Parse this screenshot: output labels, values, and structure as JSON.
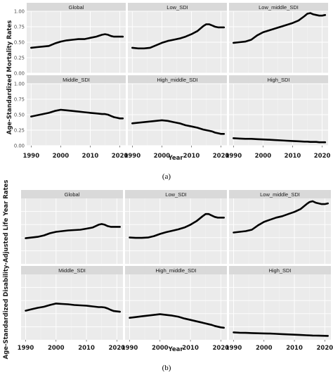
{
  "chart_data": [
    {
      "type": "line",
      "caption": "(a)",
      "xlabel": "Year",
      "ylabel": "Age-Standardized Mortality Rates",
      "xlim": [
        1988.5,
        2022
      ],
      "ylim": [
        0,
        1.0
      ],
      "xticks": [
        1990,
        2000,
        2010,
        2020
      ],
      "yticks": [
        0.0,
        0.25,
        0.5,
        0.75,
        1.0
      ],
      "ytick_labels": [
        "0.00",
        "0.25",
        "0.50",
        "0.75",
        "1.00"
      ],
      "xtick_labels": [
        "1990",
        "2000",
        "2010",
        "2020"
      ],
      "panels": [
        {
          "name": "Global",
          "x": [
            1990,
            1992,
            1994,
            1996,
            1998,
            2000,
            2002,
            2004,
            2006,
            2008,
            2010,
            2012,
            2014,
            2015,
            2016,
            2017,
            2018,
            2019,
            2020,
            2021
          ],
          "values": [
            0.41,
            0.42,
            0.43,
            0.44,
            0.48,
            0.51,
            0.53,
            0.54,
            0.55,
            0.55,
            0.57,
            0.59,
            0.62,
            0.63,
            0.62,
            0.6,
            0.59,
            0.59,
            0.59,
            0.59
          ]
        },
        {
          "name": "Low_SDI",
          "x": [
            1990,
            1992,
            1994,
            1996,
            1998,
            2000,
            2002,
            2004,
            2006,
            2008,
            2010,
            2012,
            2014,
            2015,
            2016,
            2017,
            2018,
            2019,
            2020,
            2021
          ],
          "values": [
            0.41,
            0.4,
            0.4,
            0.41,
            0.45,
            0.49,
            0.52,
            0.54,
            0.56,
            0.59,
            0.63,
            0.68,
            0.76,
            0.79,
            0.79,
            0.77,
            0.75,
            0.74,
            0.74,
            0.74
          ]
        },
        {
          "name": "Low_middle_SDI",
          "x": [
            1990,
            1992,
            1994,
            1996,
            1998,
            2000,
            2002,
            2004,
            2006,
            2008,
            2010,
            2012,
            2014,
            2015,
            2016,
            2017,
            2018,
            2019,
            2020,
            2021
          ],
          "values": [
            0.49,
            0.5,
            0.51,
            0.54,
            0.61,
            0.66,
            0.69,
            0.72,
            0.75,
            0.78,
            0.81,
            0.85,
            0.92,
            0.96,
            0.97,
            0.95,
            0.94,
            0.93,
            0.93,
            0.94
          ]
        },
        {
          "name": "Middle_SDI",
          "x": [
            1990,
            1992,
            1994,
            1996,
            1998,
            2000,
            2002,
            2004,
            2006,
            2008,
            2010,
            2012,
            2014,
            2015,
            2016,
            2017,
            2018,
            2019,
            2020,
            2021
          ],
          "values": [
            0.47,
            0.49,
            0.51,
            0.53,
            0.56,
            0.58,
            0.57,
            0.56,
            0.55,
            0.54,
            0.53,
            0.52,
            0.51,
            0.51,
            0.5,
            0.48,
            0.46,
            0.45,
            0.44,
            0.44
          ]
        },
        {
          "name": "High_middle_SDI",
          "x": [
            1990,
            1992,
            1994,
            1996,
            1998,
            2000,
            2002,
            2004,
            2006,
            2008,
            2010,
            2012,
            2014,
            2015,
            2016,
            2017,
            2018,
            2019,
            2020,
            2021
          ],
          "values": [
            0.36,
            0.37,
            0.38,
            0.39,
            0.4,
            0.41,
            0.4,
            0.38,
            0.36,
            0.33,
            0.31,
            0.29,
            0.26,
            0.25,
            0.24,
            0.23,
            0.21,
            0.2,
            0.19,
            0.19
          ]
        },
        {
          "name": "High_SDI",
          "x": [
            1990,
            1992,
            1994,
            1996,
            1998,
            2000,
            2002,
            2004,
            2006,
            2008,
            2010,
            2012,
            2014,
            2015,
            2016,
            2017,
            2018,
            2019,
            2020,
            2021
          ],
          "values": [
            0.12,
            0.115,
            0.11,
            0.11,
            0.105,
            0.1,
            0.095,
            0.09,
            0.085,
            0.08,
            0.075,
            0.07,
            0.065,
            0.065,
            0.06,
            0.06,
            0.06,
            0.055,
            0.055,
            0.055
          ]
        }
      ]
    },
    {
      "type": "line",
      "caption": "(b)",
      "xlabel": "Year",
      "ylabel": "Age-Standardized Disability-Adjusted Life Year Rates",
      "xlim": [
        1988.5,
        2022
      ],
      "ylim": [
        0,
        92
      ],
      "xticks": [
        1990,
        2000,
        2010,
        2020
      ],
      "yticks": [],
      "ytick_labels": [],
      "xtick_labels": [
        "1990",
        "2000",
        "2010",
        "2020"
      ],
      "panels": [
        {
          "name": "Global",
          "x": [
            1990,
            1992,
            1994,
            1996,
            1998,
            2000,
            2002,
            2004,
            2006,
            2008,
            2010,
            2012,
            2014,
            2015,
            2016,
            2017,
            2018,
            2019,
            2020,
            2021
          ],
          "values": [
            36,
            37,
            38,
            40,
            43,
            45,
            46,
            47,
            47.5,
            48,
            49.5,
            51,
            55,
            56,
            55,
            53,
            52,
            52,
            52,
            52
          ]
        },
        {
          "name": "Low_SDI",
          "x": [
            1990,
            1992,
            1994,
            1996,
            1998,
            2000,
            2002,
            2004,
            2006,
            2008,
            2010,
            2012,
            2014,
            2015,
            2016,
            2017,
            2018,
            2019,
            2020,
            2021
          ],
          "values": [
            37,
            36.5,
            36.5,
            37,
            39,
            42,
            44.5,
            46.5,
            48.5,
            51,
            55,
            60,
            67,
            70,
            70,
            68,
            66,
            65,
            65,
            65
          ]
        },
        {
          "name": "Low_middle_SDI",
          "x": [
            1990,
            1992,
            1994,
            1996,
            1998,
            2000,
            2002,
            2004,
            2006,
            2008,
            2010,
            2012,
            2014,
            2015,
            2016,
            2017,
            2018,
            2019,
            2020,
            2021
          ],
          "values": [
            44,
            45,
            46,
            48,
            54,
            59,
            62,
            65,
            67,
            70,
            73,
            77,
            84,
            87,
            88,
            86,
            85,
            84,
            84,
            85
          ]
        },
        {
          "name": "Middle_SDI",
          "x": [
            1990,
            1992,
            1994,
            1996,
            1998,
            2000,
            2002,
            2004,
            2006,
            2008,
            2010,
            2012,
            2014,
            2015,
            2016,
            2017,
            2018,
            2019,
            2020,
            2021
          ],
          "values": [
            41,
            43,
            45,
            46.5,
            49,
            51,
            50.5,
            50,
            49,
            48.5,
            48,
            47,
            46,
            46,
            45.5,
            44,
            42,
            40.5,
            40,
            39.5
          ]
        },
        {
          "name": "High_middle_SDI",
          "x": [
            1990,
            1992,
            1994,
            1996,
            1998,
            2000,
            2002,
            2004,
            2006,
            2008,
            2010,
            2012,
            2014,
            2015,
            2016,
            2017,
            2018,
            2019,
            2020,
            2021
          ],
          "values": [
            31,
            32,
            33,
            34,
            35,
            36,
            35,
            34,
            32.5,
            30,
            28,
            26,
            24,
            23,
            22,
            21,
            19.5,
            18.5,
            17.5,
            17
          ]
        },
        {
          "name": "High_SDI",
          "x": [
            1990,
            1992,
            1994,
            1996,
            1998,
            2000,
            2002,
            2004,
            2006,
            2008,
            2010,
            2012,
            2014,
            2015,
            2016,
            2017,
            2018,
            2019,
            2020,
            2021
          ],
          "values": [
            10.5,
            10,
            9.8,
            9.5,
            9.2,
            9,
            8.8,
            8.4,
            8,
            7.6,
            7.2,
            6.8,
            6.4,
            6.2,
            6,
            5.9,
            5.8,
            5.7,
            5.6,
            5.5
          ]
        }
      ]
    }
  ]
}
